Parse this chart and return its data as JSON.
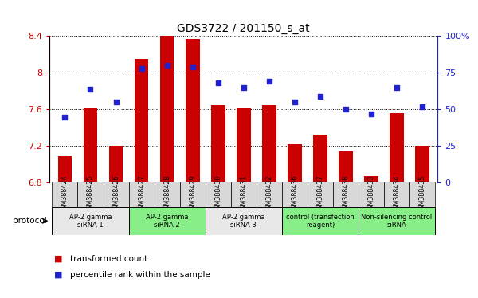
{
  "title": "GDS3722 / 201150_s_at",
  "categories": [
    "GSM388424",
    "GSM388425",
    "GSM388426",
    "GSM388427",
    "GSM388428",
    "GSM388429",
    "GSM388430",
    "GSM388431",
    "GSM388432",
    "GSM388436",
    "GSM388437",
    "GSM388438",
    "GSM388433",
    "GSM388434",
    "GSM388435"
  ],
  "bar_values": [
    7.09,
    7.61,
    7.2,
    8.15,
    8.4,
    8.37,
    7.65,
    7.61,
    7.65,
    7.22,
    7.33,
    7.14,
    6.87,
    7.56,
    7.2
  ],
  "dot_values": [
    45,
    64,
    55,
    78,
    80,
    79,
    68,
    65,
    69,
    55,
    59,
    50,
    47,
    65,
    52
  ],
  "bar_color": "#cc0000",
  "dot_color": "#2222cc",
  "ylim_left": [
    6.8,
    8.4
  ],
  "ylim_right": [
    0,
    100
  ],
  "yticks_left": [
    6.8,
    7.2,
    7.6,
    8.0,
    8.4
  ],
  "ytick_labels_left": [
    "6.8",
    "7.2",
    "7.6",
    "8",
    "8.4"
  ],
  "yticks_right": [
    0,
    25,
    50,
    75,
    100
  ],
  "ytick_labels_right": [
    "0",
    "25",
    "50",
    "75",
    "100%"
  ],
  "groups": [
    {
      "label": "AP-2 gamma\nsiRNA 1",
      "start": 0,
      "end": 3,
      "color": "#e8e8e8"
    },
    {
      "label": "AP-2 gamma\nsiRNA 2",
      "start": 3,
      "end": 6,
      "color": "#88ee88"
    },
    {
      "label": "AP-2 gamma\nsiRNA 3",
      "start": 6,
      "end": 9,
      "color": "#e8e8e8"
    },
    {
      "label": "control (transfection\nreagent)",
      "start": 9,
      "end": 12,
      "color": "#88ee88"
    },
    {
      "label": "Non-silencing control\nsiRNA",
      "start": 12,
      "end": 15,
      "color": "#88ee88"
    }
  ],
  "legend_bar_label": "transformed count",
  "legend_dot_label": "percentile rank within the sample",
  "protocol_label": "protocol",
  "left_axis_color": "#cc0000",
  "right_axis_color": "#2222cc",
  "background_color": "#ffffff",
  "bar_bottom": 6.8
}
